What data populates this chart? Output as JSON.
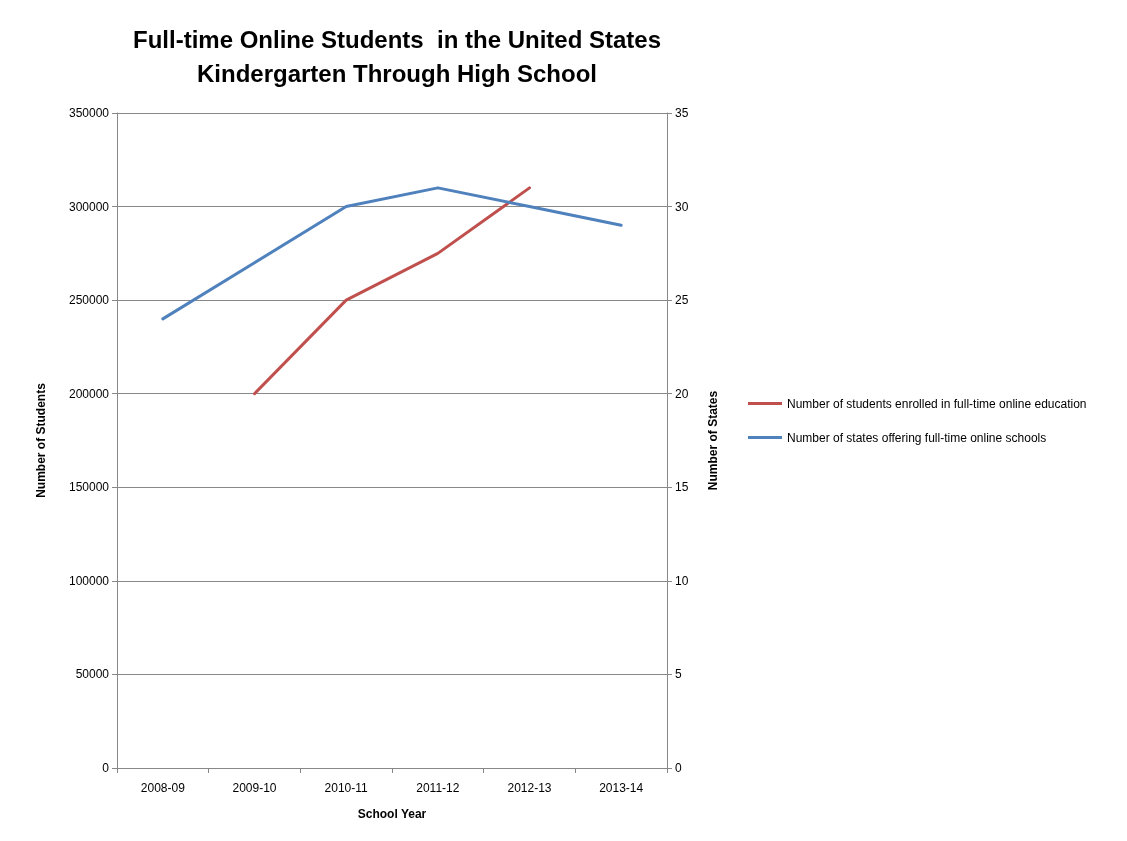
{
  "chart_data": {
    "type": "line",
    "title": "Full-time Online Students  in the United States",
    "subtitle": "Kindergarten Through High School",
    "xlabel": "School Year",
    "ylabel": "Number of Students",
    "y2label": "Number of States",
    "categories": [
      "2008-09",
      "2009-10",
      "2010-11",
      "2011-12",
      "2012-13",
      "2013-14"
    ],
    "series": [
      {
        "name": "Number of students enrolled in full-time online education",
        "color": "#c0504d",
        "values": [
          null,
          200000,
          250000,
          275000,
          310000,
          null
        ]
      },
      {
        "name": "Number of states offering full-time online schools",
        "color": "#4f81bd",
        "axis": "y2",
        "values": [
          24,
          27,
          30,
          31,
          30,
          29
        ]
      }
    ],
    "ylim": [
      0,
      350000
    ],
    "yticks": [
      0,
      50000,
      100000,
      150000,
      200000,
      250000,
      300000,
      350000
    ],
    "y2lim": [
      0,
      35
    ],
    "y2ticks": [
      0,
      5,
      10,
      15,
      20,
      25,
      30,
      35
    ],
    "grid": "y",
    "legend": "right",
    "marker": "none",
    "line_style": "solid"
  }
}
